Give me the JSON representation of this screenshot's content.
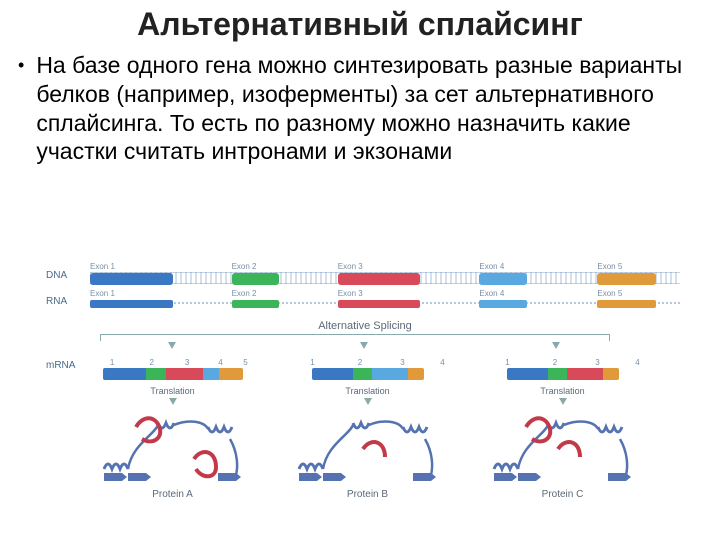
{
  "title": "Альтернативный сплайсинг",
  "bullet": "На базе одного гена можно синтезировать разные варианты белков (например, изоферменты) за сет альтернативного сплайсинга. То есть по разному можно назначить какие участки считать интронами и экзонами",
  "diagram": {
    "dnaLabel": "DNA",
    "rnaLabel": "RNA",
    "altSplicingLabel": "Alternative Splicing",
    "mrnaLabel": "mRNA",
    "translationLabel": "Translation",
    "exons": [
      {
        "label": "Exon 1",
        "color": "#3b78c4",
        "leftPct": 0,
        "widthPct": 14
      },
      {
        "label": "Exon 2",
        "color": "#3bb45a",
        "leftPct": 24,
        "widthPct": 8
      },
      {
        "label": "Exon 3",
        "color": "#d84a5a",
        "leftPct": 42,
        "widthPct": 14
      },
      {
        "label": "Exon 4",
        "color": "#5aa8e0",
        "leftPct": 66,
        "widthPct": 8
      },
      {
        "label": "Exon 5",
        "color": "#e09a3a",
        "leftPct": 86,
        "widthPct": 10
      }
    ],
    "segNumbers": [
      "1",
      "2",
      "3",
      "4",
      "5"
    ],
    "variants": [
      {
        "name": "Protein A",
        "bar": [
          "#3b78c4",
          "#3bb45a",
          "#d84a5a",
          "#5aa8e0",
          "#e09a3a"
        ]
      },
      {
        "name": "Protein B",
        "bar": [
          "#3b78c4",
          "#3bb45a",
          "#5aa8e0",
          "#e09a3a"
        ]
      },
      {
        "name": "Protein C",
        "bar": [
          "#3b78c4",
          "#3bb45a",
          "#d84a5a",
          "#e09a3a"
        ]
      }
    ],
    "proteinColors": {
      "helix": "#5573b0",
      "sheet": "#5573b0",
      "loop": "#c23a4a"
    }
  }
}
